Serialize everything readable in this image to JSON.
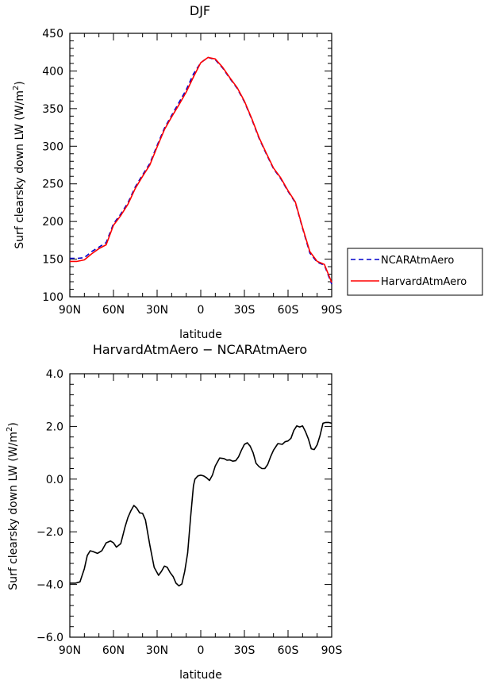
{
  "chart_data": [
    {
      "type": "line",
      "title": "DJF",
      "xlabel": "latitude",
      "ylabel": "Surf clearsky down LW (W/m²)",
      "ylabel_main": "Surf clearsky down LW (W/m",
      "ylabel_sup": "2",
      "ylabel_close": ")",
      "xlim": [
        -90,
        90
      ],
      "ylim": [
        100,
        450
      ],
      "x_ticks": [
        -90,
        -60,
        -30,
        0,
        30,
        60,
        90
      ],
      "x_tick_labels": [
        "90N",
        "60N",
        "30N",
        "0",
        "30S",
        "60S",
        "90S"
      ],
      "y_ticks": [
        100,
        150,
        200,
        250,
        300,
        350,
        400,
        450
      ],
      "y_tick_labels": [
        "100",
        "150",
        "200",
        "250",
        "300",
        "350",
        "400",
        "450"
      ],
      "legend_position": "right",
      "series": [
        {
          "name": "NCARAtmAero",
          "color": "#0000cc",
          "dash": "dashed",
          "x": [
            -90,
            -85,
            -80,
            -75,
            -70,
            -65,
            -60,
            -55,
            -50,
            -45,
            -40,
            -35,
            -30,
            -25,
            -20,
            -15,
            -10,
            -5,
            0,
            5,
            10,
            15,
            20,
            25,
            30,
            35,
            40,
            45,
            50,
            55,
            60,
            65,
            70,
            75,
            80,
            85,
            90
          ],
          "y": [
            151,
            151,
            152,
            160,
            166,
            172,
            197,
            210,
            225,
            246,
            262,
            277,
            301,
            324,
            341,
            358,
            375,
            396,
            411,
            418,
            415,
            404,
            390,
            377,
            359,
            336,
            311,
            290,
            270,
            257,
            240,
            225,
            191,
            158,
            146,
            142,
            117
          ]
        },
        {
          "name": "HarvardAtmAero",
          "color": "#ff0000",
          "dash": "solid",
          "x": [
            -90,
            -85,
            -80,
            -75,
            -70,
            -65,
            -60,
            -55,
            -50,
            -45,
            -40,
            -35,
            -30,
            -25,
            -20,
            -15,
            -10,
            -5,
            0,
            5,
            10,
            15,
            20,
            25,
            30,
            35,
            40,
            45,
            50,
            55,
            60,
            65,
            70,
            75,
            80,
            85,
            90
          ],
          "y": [
            147,
            147,
            149,
            157,
            164,
            169,
            195,
            208,
            223,
            244,
            260,
            275,
            299,
            322,
            339,
            355,
            372,
            392,
            411,
            418,
            416,
            405,
            391,
            378,
            360,
            337,
            312,
            291,
            271,
            258,
            241,
            226,
            192,
            160,
            147,
            143,
            119
          ]
        }
      ]
    },
    {
      "type": "line",
      "title": "HarvardAtmAero − NCARAtmAero",
      "title_text": "HarvardAtmAero − NCARAtmAero",
      "xlabel": "latitude",
      "ylabel": "Surf clearsky down LW (W/m²)",
      "ylabel_main": "Surf clearsky down LW (W/m",
      "ylabel_sup": "2",
      "ylabel_close": ")",
      "xlim": [
        -90,
        90
      ],
      "ylim": [
        -6.0,
        4.0
      ],
      "x_ticks": [
        -90,
        -60,
        -30,
        0,
        30,
        60,
        90
      ],
      "x_tick_labels": [
        "90N",
        "60N",
        "30N",
        "0",
        "30S",
        "60S",
        "90S"
      ],
      "y_ticks": [
        -6,
        -4,
        -2,
        0,
        2,
        4
      ],
      "y_tick_labels": [
        "−6.0",
        "−4.0",
        "−2.0",
        "0.0",
        "2.0",
        "4.0"
      ],
      "series": [
        {
          "color": "#000000",
          "dash": "solid",
          "x": [
            -90,
            -86,
            -83,
            -80,
            -78,
            -76,
            -74,
            -71,
            -68,
            -65,
            -62,
            -60,
            -58,
            -55,
            -52,
            -50,
            -48,
            -46,
            -44,
            -42,
            -40,
            -38,
            -35,
            -32,
            -29,
            -27,
            -25,
            -23,
            -21,
            -19,
            -17,
            -15,
            -13,
            -11,
            -9,
            -7,
            -5,
            -4,
            -2,
            0,
            2,
            4,
            6,
            8,
            10,
            13,
            16,
            18,
            20,
            22,
            24,
            26,
            28,
            30,
            32,
            34,
            36,
            38,
            40,
            42,
            44,
            46,
            48,
            50,
            53,
            56,
            58,
            60,
            62,
            64,
            66,
            68,
            70,
            72,
            74,
            76,
            78,
            80,
            82,
            84,
            86,
            88,
            90
          ],
          "y": [
            -3.95,
            -3.95,
            -3.9,
            -3.4,
            -2.9,
            -2.72,
            -2.75,
            -2.82,
            -2.72,
            -2.42,
            -2.35,
            -2.42,
            -2.58,
            -2.45,
            -1.8,
            -1.45,
            -1.2,
            -1.0,
            -1.1,
            -1.28,
            -1.3,
            -1.55,
            -2.5,
            -3.35,
            -3.65,
            -3.5,
            -3.3,
            -3.35,
            -3.55,
            -3.7,
            -3.95,
            -4.05,
            -3.98,
            -3.5,
            -2.8,
            -1.45,
            -0.25,
            0.0,
            0.12,
            0.15,
            0.12,
            0.05,
            -0.05,
            0.15,
            0.5,
            0.8,
            0.78,
            0.72,
            0.73,
            0.68,
            0.7,
            0.85,
            1.1,
            1.32,
            1.38,
            1.25,
            1.0,
            0.6,
            0.48,
            0.4,
            0.4,
            0.55,
            0.85,
            1.1,
            1.35,
            1.32,
            1.42,
            1.45,
            1.55,
            1.85,
            2.02,
            1.98,
            2.02,
            1.8,
            1.52,
            1.15,
            1.12,
            1.3,
            1.65,
            2.12,
            2.15,
            2.15,
            2.12
          ]
        }
      ]
    }
  ]
}
